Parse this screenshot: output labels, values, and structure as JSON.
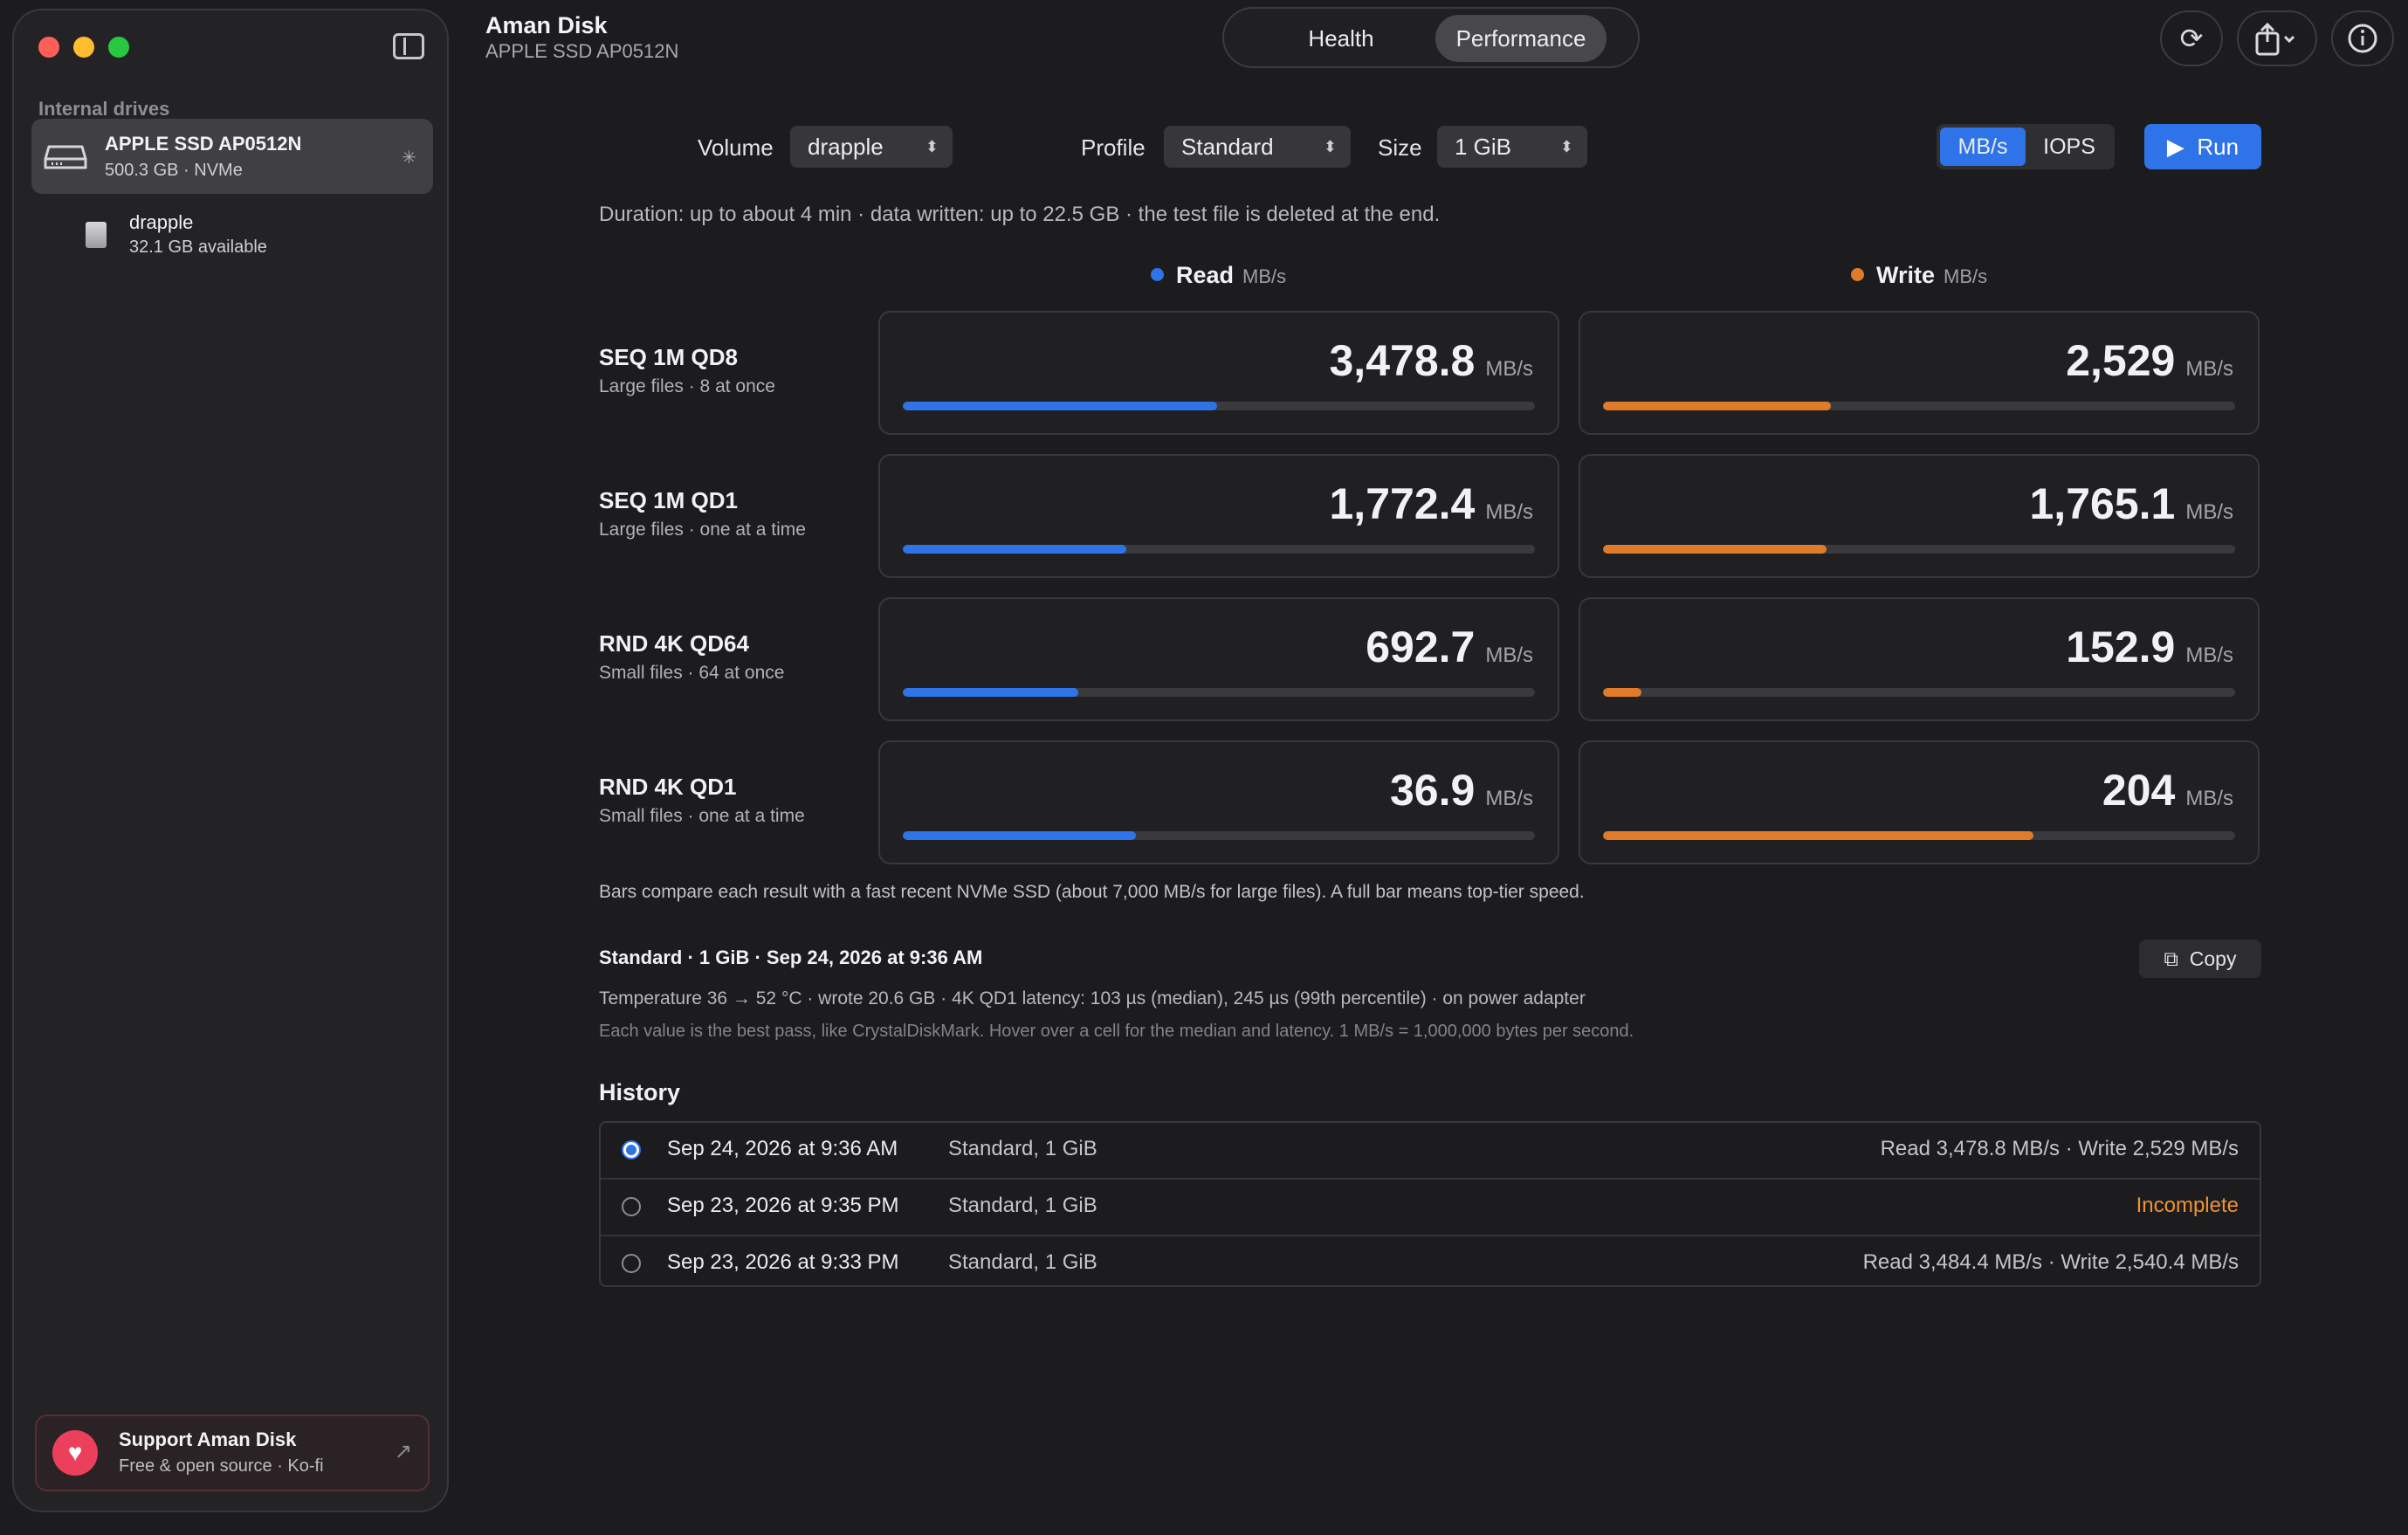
{
  "app": {
    "title": "Aman Disk",
    "subtitle": "APPLE SSD AP0512N"
  },
  "tabs": [
    {
      "label": "Health"
    },
    {
      "label": "Performance",
      "selected": true
    }
  ],
  "sidebar": {
    "section_label": "Internal drives",
    "drive": {
      "name": "APPLE SSD AP0512N",
      "detail": "500.3 GB · NVMe"
    },
    "volume": {
      "name": "drapple",
      "detail": "32.1 GB available"
    },
    "support": {
      "title": "Support Aman Disk",
      "subtitle": "Free & open source · Ko-fi"
    }
  },
  "controls": {
    "volume_label": "Volume",
    "volume_value": "drapple",
    "profile_label": "Profile",
    "profile_value": "Standard",
    "size_label": "Size",
    "size_value": "1 GiB",
    "unit_mbs": "MB/s",
    "unit_iops": "IOPS",
    "run_label": "Run"
  },
  "duration": "Duration: up to about 4 min · data written: up to 22.5 GB · the test file is deleted at the end.",
  "columns": {
    "read": {
      "label": "Read",
      "unit": "MB/s",
      "color": "#2f73e8"
    },
    "write": {
      "label": "Write",
      "unit": "MB/s",
      "color": "#e07b2a"
    }
  },
  "tests": [
    {
      "title": "SEQ 1M QD8",
      "subtitle": "Large files · 8 at once",
      "read": "3,478.8",
      "write": "2,529",
      "read_fill": 0.497,
      "write_fill": 0.361
    },
    {
      "title": "SEQ 1M QD1",
      "subtitle": "Large files · one at a time",
      "read": "1,772.4",
      "write": "1,765.1",
      "read_fill": 0.354,
      "write_fill": 0.353
    },
    {
      "title": "RND 4K QD64",
      "subtitle": "Small files · 64 at once",
      "read": "692.7",
      "write": "152.9",
      "read_fill": 0.277,
      "write_fill": 0.061
    },
    {
      "title": "RND 4K QD1",
      "subtitle": "Small files · one at a time",
      "read": "36.9",
      "write": "204",
      "read_fill": 0.369,
      "write_fill": 0.681
    }
  ],
  "value_unit": "MB/s",
  "note": "Bars compare each result with a fast recent NVMe SSD (about 7,000 MB/s for large files). A full bar means top-tier speed.",
  "summary": {
    "title": "Standard · 1 GiB · Sep 24, 2026 at 9:36 AM",
    "copy_label": "Copy",
    "detail1": "Temperature 36 → 52 °C · wrote 20.6 GB · 4K QD1 latency: 103 µs (median), 245 µs (99th percentile) · on power adapter",
    "detail2": "Each value is the best pass, like CrystalDiskMark. Hover over a cell for the median and latency. 1 MB/s = 1,000,000 bytes per second."
  },
  "history": {
    "title": "History",
    "rows": [
      {
        "date": "Sep 24, 2026 at 9:36 AM",
        "profile": "Standard, 1 GiB",
        "result": "Read 3,478.8 MB/s · Write 2,529 MB/s",
        "selected": true,
        "warn": false
      },
      {
        "date": "Sep 23, 2026 at 9:35 PM",
        "profile": "Standard, 1 GiB",
        "result": "Incomplete",
        "selected": false,
        "warn": true
      },
      {
        "date": "Sep 23, 2026 at 9:33 PM",
        "profile": "Standard, 1 GiB",
        "result": "Read 3,484.4 MB/s · Write 2,540.4 MB/s",
        "selected": false,
        "warn": false
      }
    ]
  }
}
